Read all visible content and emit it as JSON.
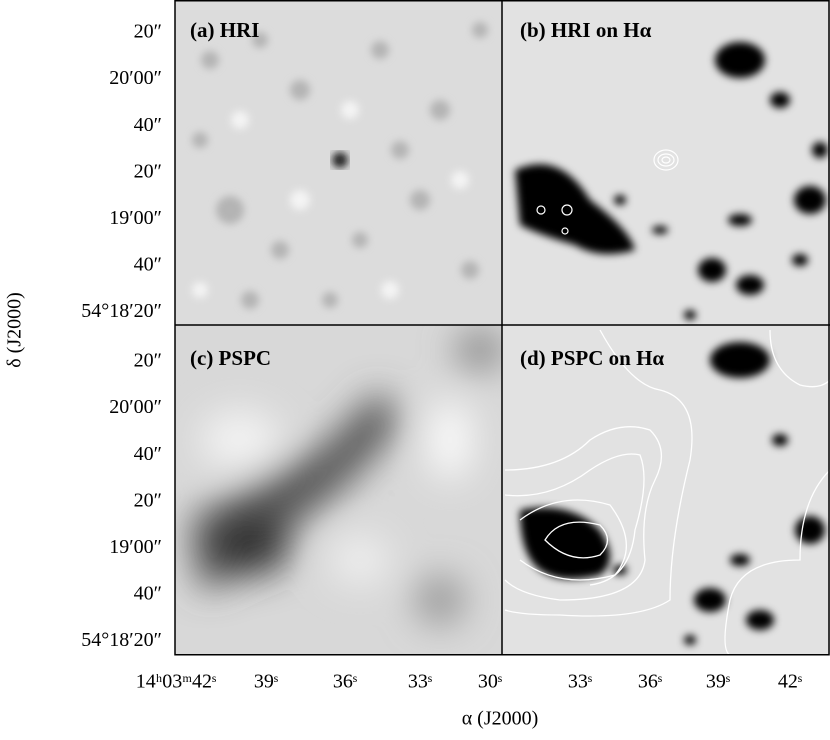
{
  "figure": {
    "panels": [
      {
        "label": "(a) HRI"
      },
      {
        "label": "(b) HRI on Hα"
      },
      {
        "label": "(c) PSPC"
      },
      {
        "label": "(d) PSPC on Hα"
      }
    ],
    "y_tick_labels": [
      "20″",
      "20′00″",
      "40″",
      "20″",
      "19′00″",
      "40″",
      "54°18′20″"
    ],
    "x_tick_labels_left": [
      "14ʰ03ᵐ42ˢ",
      "39ˢ",
      "36ˢ",
      "33ˢ",
      "30ˢ"
    ],
    "x_tick_labels_right": [
      "33ˢ",
      "36ˢ",
      "39ˢ",
      "42ˢ"
    ],
    "x_axis_label": "α (J2000)",
    "y_axis_label": "δ (J2000)"
  }
}
